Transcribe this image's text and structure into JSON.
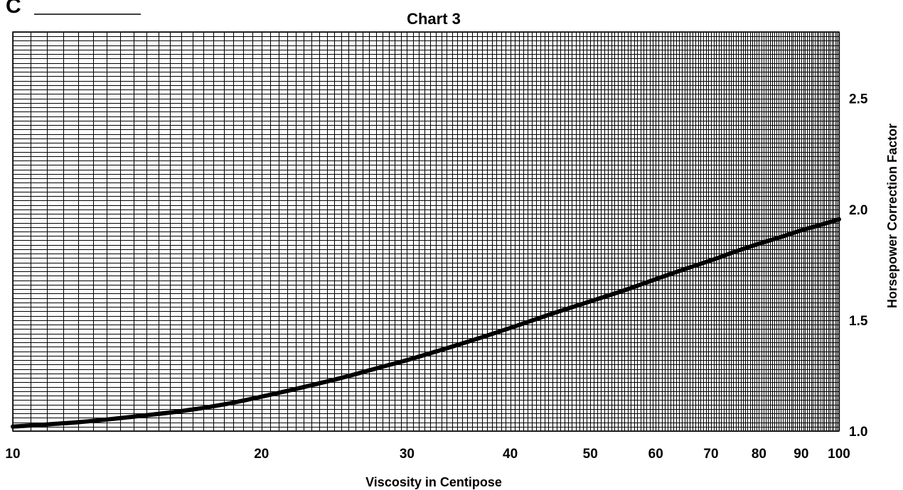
{
  "page": {
    "marker": "C"
  },
  "chart_data": {
    "type": "line",
    "title": "Chart 3",
    "xlabel": "Viscosity in Centipose",
    "ylabel": "Horsepower Correction Factor",
    "x_scale": "log",
    "xlim": [
      10,
      100
    ],
    "ylim": [
      1.0,
      2.8
    ],
    "grid": true,
    "y_axis_side": "right",
    "x_ticks": [
      10,
      20,
      30,
      40,
      50,
      60,
      70,
      80,
      90,
      100
    ],
    "x_tick_labels": [
      "10",
      "20",
      "30",
      "40",
      "50",
      "60",
      "70",
      "80",
      "90",
      "100"
    ],
    "y_ticks": [
      1.0,
      1.5,
      2.0,
      2.5
    ],
    "y_tick_labels": [
      "1.0",
      "1.5",
      "2.0",
      "2.5"
    ],
    "series": [
      {
        "x": [
          10,
          12,
          14,
          16,
          18,
          20,
          22,
          25,
          28,
          30,
          35,
          40,
          45,
          50,
          55,
          60,
          65,
          70,
          75,
          80,
          85,
          90,
          95,
          100
        ],
        "y": [
          1.02,
          1.04,
          1.065,
          1.09,
          1.12,
          1.155,
          1.19,
          1.24,
          1.29,
          1.32,
          1.395,
          1.465,
          1.53,
          1.585,
          1.635,
          1.685,
          1.73,
          1.77,
          1.81,
          1.845,
          1.875,
          1.905,
          1.93,
          1.955
        ],
        "color": "#000000"
      }
    ]
  }
}
